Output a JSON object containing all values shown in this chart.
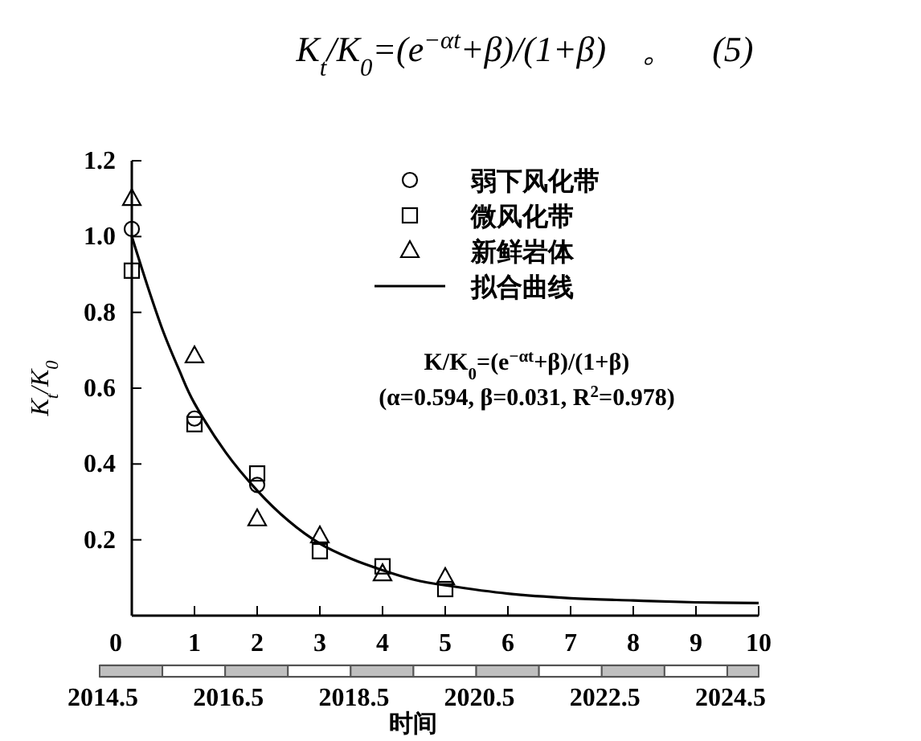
{
  "chart_data": {
    "type": "scatter",
    "annotations": [
      "K$_{t}$/K$_{0}$=(e$^{−αt}$+β)/(1+β)　。　(5)",
      "K/K$_{0}$=(e$^{−αt}$+β)/(1+β)",
      "(α=0.594, β=0.031, R$^{2}$=0.978)"
    ],
    "ylabel": "K$_{t}$/K$_{0}$",
    "x2label": "时间",
    "xlim": [
      0,
      10
    ],
    "xticks": [
      0,
      1,
      2,
      3,
      4,
      5,
      6,
      7,
      8,
      9,
      10
    ],
    "ylim": [
      0,
      1.2
    ],
    "yticks": [
      0.2,
      0.4,
      0.6,
      0.8,
      {
        "value": 1.0,
        "label": "1.0"
      },
      1.2
    ],
    "x2lim": [
      2014.5,
      2025
    ],
    "x2ticks": [
      {
        "value": 2014.5,
        "label": "2014.5"
      },
      {
        "value": 2016.5,
        "label": "2016.5"
      },
      {
        "value": 2018.5,
        "label": "2018.5"
      },
      {
        "value": 2020.5,
        "label": "2020.5"
      },
      {
        "value": 2022.5,
        "label": "2022.5"
      },
      {
        "value": 2024.5,
        "label": "2024.5"
      }
    ],
    "legend": "top right",
    "grid": false,
    "series": [
      {
        "name": "弱下风化带",
        "color": "#000000",
        "marker": "circle",
        "x": [
          0,
          1,
          2
        ],
        "values": [
          1.02,
          0.52,
          0.345
        ]
      },
      {
        "name": "微风化带",
        "color": "#000000",
        "marker": "square",
        "x": [
          0,
          1,
          2,
          3,
          4,
          5
        ],
        "values": [
          0.91,
          0.505,
          0.375,
          0.17,
          0.13,
          0.07
        ]
      },
      {
        "name": "新鲜岩体",
        "color": "#000000",
        "marker": "triangle",
        "x": [
          0,
          1,
          2,
          3,
          4,
          5
        ],
        "values": [
          1.1,
          0.685,
          0.255,
          0.21,
          0.11,
          0.1
        ]
      },
      {
        "name": "拟合曲线",
        "color": "#000000",
        "type": "line",
        "marker": "none",
        "line_style": "solid",
        "x": [
          0,
          0.25,
          0.5,
          0.75,
          1,
          1.5,
          2,
          2.5,
          3,
          3.5,
          4,
          4.5,
          5,
          6,
          7,
          8,
          9,
          10
        ],
        "values": [
          1.0,
          0.87,
          0.75,
          0.65,
          0.56,
          0.43,
          0.33,
          0.25,
          0.19,
          0.15,
          0.12,
          0.095,
          0.08,
          0.058,
          0.046,
          0.04,
          0.035,
          0.033
        ]
      }
    ]
  }
}
